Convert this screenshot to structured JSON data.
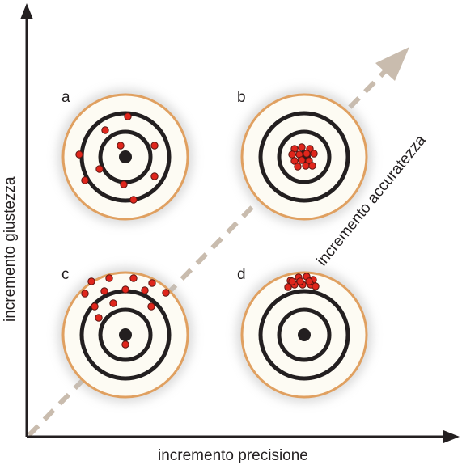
{
  "axes": {
    "x_label": "incremento precisione",
    "y_label": "incremento giustezza",
    "diagonal_label": "incremento accuratezza"
  },
  "colors": {
    "axis": "#231f20",
    "diagonal_arrow": "#c9bcae",
    "target_face": "#fdfbf3",
    "target_rim": "#e0a060",
    "rings": "#231f20",
    "shot_fill": "#e0261c",
    "shot_stroke": "#5a1410"
  },
  "targets": [
    {
      "id": "a",
      "label": "a",
      "description": "scattered shots"
    },
    {
      "id": "b",
      "label": "b",
      "description": "tight cluster on center"
    },
    {
      "id": "c",
      "label": "c",
      "description": "scattered shots offset high"
    },
    {
      "id": "d",
      "label": "d",
      "description": "tight cluster offset high"
    }
  ]
}
